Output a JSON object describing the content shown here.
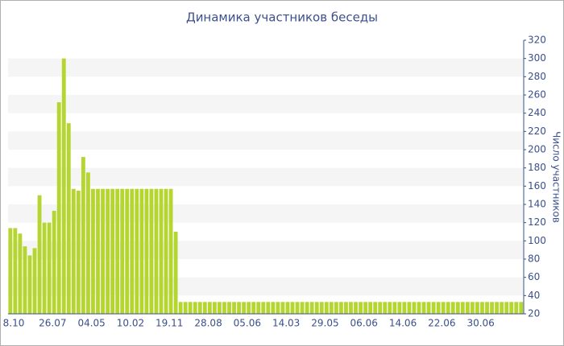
{
  "chart_data": {
    "type": "bar",
    "title": "Динамика участников беседы",
    "y_axis_label": "Число участников",
    "color": "#b5d630",
    "ylim": [
      20,
      320
    ],
    "yticks": [
      20,
      40,
      60,
      80,
      100,
      120,
      140,
      160,
      180,
      200,
      220,
      240,
      260,
      280,
      300,
      320
    ],
    "grid": true,
    "y_axis_side": "right",
    "categories": [
      "8.10",
      null,
      null,
      null,
      null,
      null,
      null,
      null,
      "26.07",
      null,
      null,
      null,
      null,
      null,
      null,
      null,
      "04.05",
      null,
      null,
      null,
      null,
      null,
      null,
      null,
      "10.02",
      null,
      null,
      null,
      null,
      null,
      null,
      null,
      "19.11",
      null,
      null,
      null,
      null,
      null,
      null,
      null,
      "28.08",
      null,
      null,
      null,
      null,
      null,
      null,
      null,
      "05.06",
      null,
      null,
      null,
      null,
      null,
      null,
      null,
      "14.03",
      null,
      null,
      null,
      null,
      null,
      null,
      null,
      "29.05",
      null,
      null,
      null,
      null,
      null,
      null,
      null,
      "06.06",
      null,
      null,
      null,
      null,
      null,
      null,
      null,
      "14.06",
      null,
      null,
      null,
      null,
      null,
      null,
      null,
      "22.06",
      null,
      null,
      null,
      null,
      null,
      null,
      null,
      "30.06",
      null,
      null,
      null,
      null,
      null,
      null,
      null,
      null,
      null
    ],
    "values": [
      114,
      114,
      108,
      94,
      84,
      92,
      150,
      120,
      120,
      133,
      252,
      300,
      229,
      157,
      155,
      192,
      175,
      157,
      157,
      157,
      157,
      157,
      157,
      157,
      157,
      157,
      157,
      157,
      157,
      157,
      157,
      157,
      157,
      157,
      110,
      33,
      33,
      33,
      33,
      33,
      33,
      33,
      33,
      33,
      33,
      33,
      33,
      33,
      33,
      33,
      33,
      33,
      33,
      33,
      33,
      33,
      33,
      33,
      33,
      33,
      33,
      33,
      33,
      33,
      33,
      33,
      33,
      33,
      33,
      33,
      33,
      33,
      33,
      33,
      33,
      33,
      33,
      33,
      33,
      33,
      33,
      33,
      33,
      33,
      33,
      33,
      33,
      33,
      33,
      33,
      33,
      33,
      33,
      33,
      33,
      33,
      33,
      33,
      33,
      33,
      33,
      33,
      33,
      33,
      33,
      33
    ]
  }
}
